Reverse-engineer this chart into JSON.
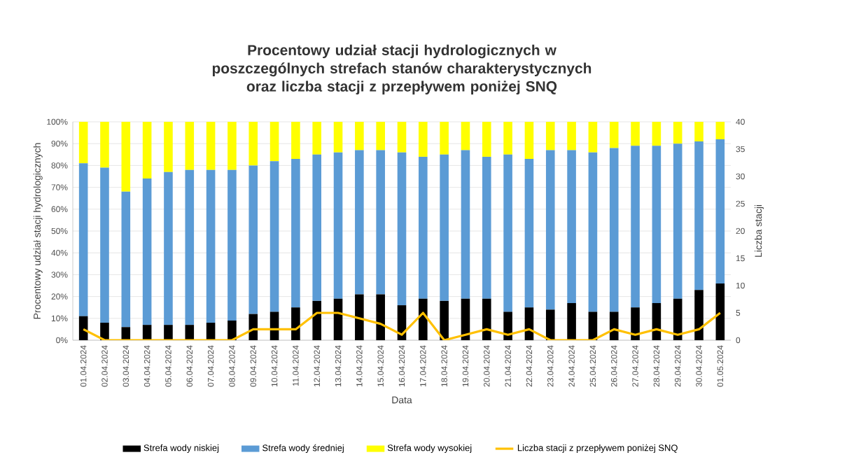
{
  "chart_data": {
    "type": "bar",
    "stacked": true,
    "title": "Procentowy udział stacji hydrologicznych w poszczególnych strefach stanów charakterystycznych oraz liczba stacji z przepływem poniżej SNQ",
    "xlabel": "Data",
    "ylabel": "Procentowy udział stacji hydrologicznych",
    "y2label": "Liczba stacji",
    "categories": [
      "01.04.2024",
      "02.04.2024",
      "03.04.2024",
      "04.04.2024",
      "05.04.2024",
      "06.04.2024",
      "07.04.2024",
      "08.04.2024",
      "09.04.2024",
      "10.04.2024",
      "11.04.2024",
      "12.04.2024",
      "13.04.2024",
      "14.04.2024",
      "15.04.2024",
      "16.04.2024",
      "17.04.2024",
      "18.04.2024",
      "19.04.2024",
      "20.04.2024",
      "21.04.2024",
      "22.04.2024",
      "23.04.2024",
      "24.04.2024",
      "25.04.2024",
      "26.04.2024",
      "27.04.2024",
      "28.04.2024",
      "29.04.2024",
      "30.04.2024",
      "01.05.2024"
    ],
    "series": [
      {
        "name": "Strefa wody niskiej",
        "color": "#000000",
        "values": [
          11,
          8,
          6,
          7,
          7,
          7,
          8,
          9,
          12,
          13,
          15,
          18,
          19,
          21,
          21,
          16,
          19,
          18,
          19,
          19,
          13,
          15,
          14,
          17,
          13,
          13,
          15,
          17,
          19,
          23,
          26
        ]
      },
      {
        "name": "Strefa wody średniej",
        "color": "#5b9bd5",
        "values": [
          70,
          71,
          62,
          67,
          70,
          71,
          70,
          69,
          68,
          69,
          68,
          67,
          67,
          66,
          66,
          70,
          65,
          67,
          68,
          65,
          72,
          68,
          73,
          70,
          73,
          75,
          74,
          72,
          71,
          68,
          66
        ]
      },
      {
        "name": "Strefa wody wysokiej",
        "color": "#ffff00",
        "values": [
          19,
          21,
          32,
          26,
          23,
          22,
          22,
          22,
          20,
          18,
          17,
          15,
          14,
          13,
          13,
          14,
          16,
          15,
          13,
          16,
          15,
          17,
          13,
          13,
          14,
          12,
          11,
          11,
          10,
          9,
          8
        ]
      },
      {
        "name": "Liczba stacji z przepływem poniżej SNQ",
        "type": "line",
        "axis": "y2",
        "color": "#ffc000",
        "values": [
          2,
          0,
          0,
          0,
          0,
          0,
          0,
          0,
          2,
          2,
          2,
          5,
          5,
          4,
          3,
          1,
          5,
          0,
          1,
          2,
          1,
          2,
          0,
          0,
          0,
          2,
          1,
          2,
          1,
          2,
          5
        ]
      }
    ],
    "ylim": [
      0,
      100
    ],
    "yticks": [
      {
        "value": 0,
        "label": "0%"
      },
      {
        "value": 10,
        "label": "10%"
      },
      {
        "value": 20,
        "label": "20%"
      },
      {
        "value": 30,
        "label": "30%"
      },
      {
        "value": 40,
        "label": "40%"
      },
      {
        "value": 50,
        "label": "50%"
      },
      {
        "value": 60,
        "label": "60%"
      },
      {
        "value": 70,
        "label": "70%"
      },
      {
        "value": 80,
        "label": "80%"
      },
      {
        "value": 90,
        "label": "90%"
      },
      {
        "value": 100,
        "label": "100%"
      }
    ],
    "y2lim": [
      0,
      40
    ],
    "y2ticks": [
      0,
      5,
      10,
      15,
      20,
      25,
      30,
      35,
      40
    ],
    "grid": "y",
    "legend": "bottom"
  }
}
